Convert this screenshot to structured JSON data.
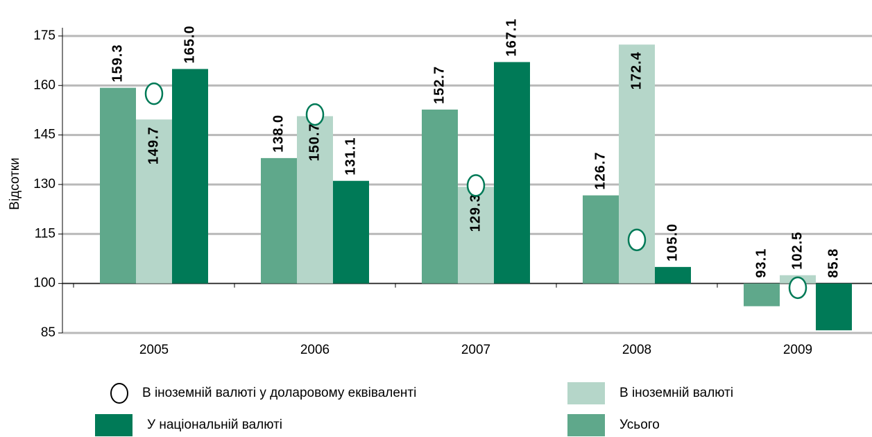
{
  "chart_data": {
    "type": "bar",
    "y_label": "Відсотки",
    "baseline": 100,
    "categories": [
      "2005",
      "2006",
      "2007",
      "2008",
      "2009"
    ],
    "ylim": [
      85,
      177.5
    ],
    "yticks": [
      85,
      100,
      115,
      130,
      145,
      160,
      175
    ],
    "grid": true,
    "series": [
      {
        "name": "Усього",
        "color": "#5fa88b",
        "values": [
          159.3,
          138.0,
          152.7,
          126.7,
          93.1
        ],
        "value_labels": [
          "159.3",
          "138.0",
          "152.7",
          "126.7",
          "93.1"
        ]
      },
      {
        "name": "В іноземній валюті",
        "color": "#b5d6c9",
        "values": [
          149.7,
          150.7,
          129.3,
          172.4,
          102.5
        ],
        "value_labels": [
          "149.7",
          "150.7",
          "129.3",
          "172.4",
          "102.5"
        ]
      },
      {
        "name": "У національній валюті",
        "color": "#007a57",
        "values": [
          165.0,
          131.1,
          167.1,
          105.0,
          85.8
        ],
        "value_labels": [
          "165.0",
          "131.1",
          "167.1",
          "105.0",
          "85.8"
        ]
      },
      {
        "name": "В іноземній валюті у доларовому еквіваленті",
        "color": "#007a57",
        "marker": "circle",
        "values": [
          157.5,
          151.2,
          129.7,
          113.2,
          98.7
        ]
      }
    ]
  }
}
